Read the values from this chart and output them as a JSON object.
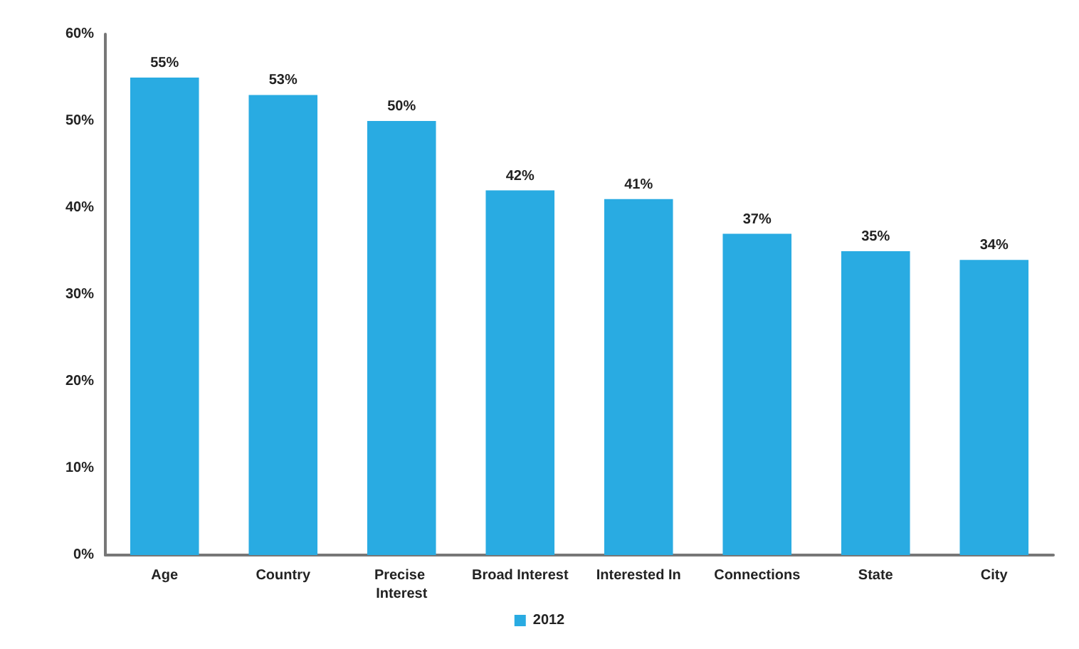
{
  "chart_data": {
    "type": "bar",
    "categories": [
      "Age",
      "Country",
      "Precise Interest",
      "Broad Interest",
      "Interested In",
      "Connections",
      "State",
      "City"
    ],
    "series": [
      {
        "name": "2012",
        "color": "#29abe2",
        "values": [
          55,
          53,
          50,
          42,
          41,
          37,
          35,
          34
        ],
        "value_labels": [
          "55%",
          "53%",
          "50%",
          "42%",
          "41%",
          "37%",
          "35%",
          "34%"
        ]
      }
    ],
    "ylim": [
      0,
      60
    ],
    "yticks": [
      {
        "value": 0,
        "label": "0%"
      },
      {
        "value": 10,
        "label": "10%"
      },
      {
        "value": 20,
        "label": "20%"
      },
      {
        "value": 30,
        "label": "30%"
      },
      {
        "value": 40,
        "label": "40%"
      },
      {
        "value": 50,
        "label": "50%"
      },
      {
        "value": 60,
        "label": "60%"
      }
    ],
    "grid": false,
    "legend": "bottom"
  }
}
